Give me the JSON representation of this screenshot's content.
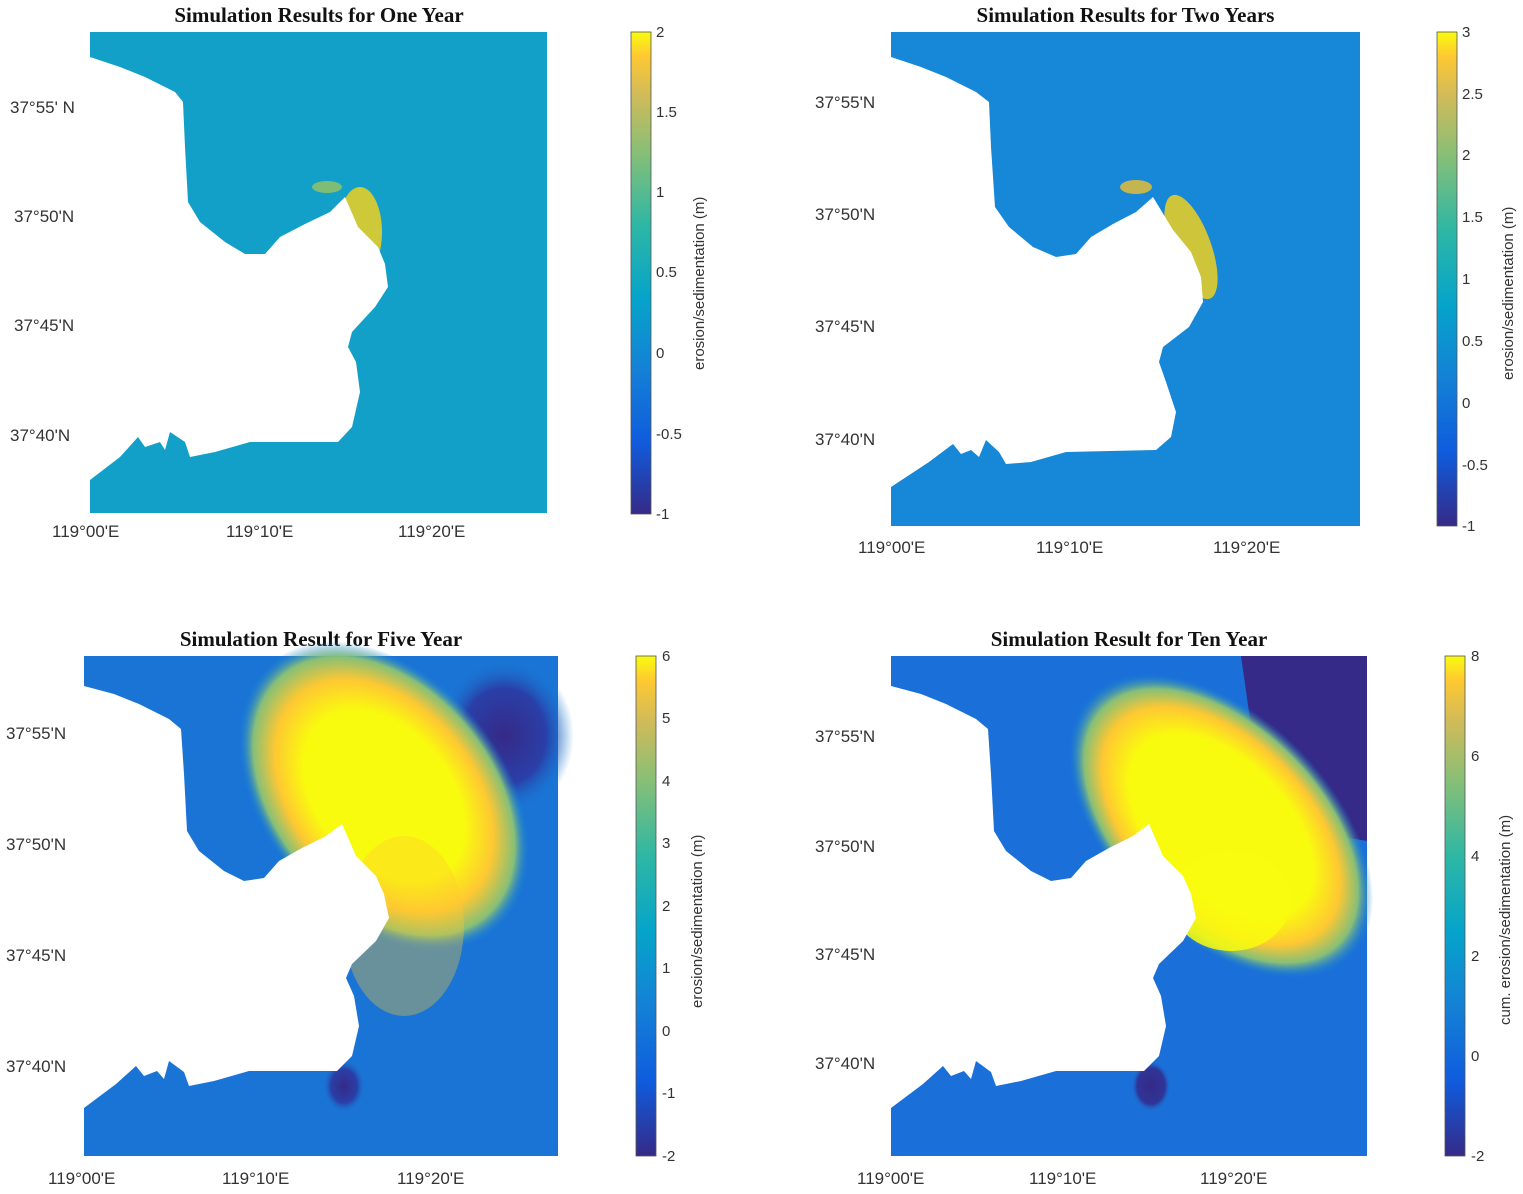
{
  "chart_data": [
    {
      "type": "heatmap",
      "title": "Simulation Results for One Year",
      "xticks": [
        "119°00'E",
        "119°10'E",
        "119°20'E"
      ],
      "yticks": [
        "37°55' N",
        "37°50'N",
        "37°45'N",
        "37°40'N"
      ],
      "colorbar": {
        "label": "erosion/sedimentation (m)",
        "range": [
          -1,
          2
        ],
        "ticks": [
          "2",
          "1.5",
          "1",
          "0.5",
          "0",
          "-0.5",
          "-1"
        ]
      }
    },
    {
      "type": "heatmap",
      "title": "Simulation Results for Two Years",
      "xticks": [
        "119°00'E",
        "119°10'E",
        "119°20'E"
      ],
      "yticks": [
        "37°55'N",
        "37°50'N",
        "37°45'N",
        "37°40'N"
      ],
      "colorbar": {
        "label": "erosion/sedimentation (m)",
        "range": [
          -1,
          3
        ],
        "ticks": [
          "3",
          "2.5",
          "2",
          "1.5",
          "1",
          "0.5",
          "0",
          "-0.5",
          "-1"
        ]
      }
    },
    {
      "type": "heatmap",
      "title": "Simulation Result for Five Year",
      "xticks": [
        "119°00'E",
        "119°10'E",
        "119°20'E"
      ],
      "yticks": [
        "37°55'N",
        "37°50'N",
        "37°45'N",
        "37°40'N"
      ],
      "colorbar": {
        "label": "erosion/sedimentation (m)",
        "range": [
          -2,
          6
        ],
        "ticks": [
          "6",
          "5",
          "4",
          "3",
          "2",
          "1",
          "0",
          "-1",
          "-2"
        ]
      }
    },
    {
      "type": "heatmap",
      "title": "Simulation Result for Ten Year",
      "xticks": [
        "119°00'E",
        "119°10'E",
        "119°20'E"
      ],
      "yticks": [
        "37°55'N",
        "37°50'N",
        "37°45'N",
        "37°40'N"
      ],
      "colorbar": {
        "label": "cum. erosion/sedimentation (m)",
        "range": [
          -2,
          8
        ],
        "ticks": [
          "8",
          "6",
          "4",
          "2",
          "0",
          "-2"
        ]
      }
    }
  ]
}
